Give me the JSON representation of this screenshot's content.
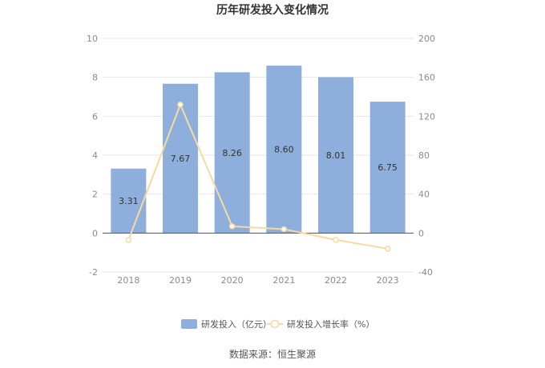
{
  "chart_data": {
    "type": "bar",
    "title": "历年研发投入变化情况",
    "categories": [
      "2018",
      "2019",
      "2020",
      "2021",
      "2022",
      "2023"
    ],
    "series": [
      {
        "name": "研发投入（亿元）",
        "type": "bar",
        "axis": "left",
        "color": "#8eaedb",
        "values": [
          3.31,
          7.67,
          8.26,
          8.6,
          8.01,
          6.75
        ],
        "value_labels": [
          "3.31",
          "7.67",
          "8.26",
          "8.60",
          "8.01",
          "6.75"
        ]
      },
      {
        "name": "研发投入增长率（%）",
        "type": "line",
        "axis": "right",
        "color": "#f9d9a0",
        "values": [
          -7,
          132,
          7,
          4,
          -7,
          -16
        ]
      }
    ],
    "y_left": {
      "min": -2,
      "max": 10,
      "ticks": [
        "-2",
        "0",
        "2",
        "4",
        "6",
        "8",
        "10"
      ]
    },
    "y_right": {
      "min": -40,
      "max": 200,
      "ticks": [
        "-40",
        "0",
        "40",
        "80",
        "120",
        "160",
        "200"
      ]
    },
    "grid": true,
    "legend_position": "bottom"
  },
  "source": "数据来源：恒生聚源"
}
